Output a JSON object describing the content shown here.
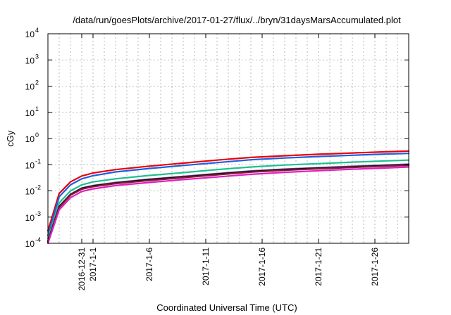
{
  "chart_data": {
    "type": "line",
    "title": "/data/run/goesPlots/archive/2017-01-27/flux/../bryn/31daysMarsAccumulated.plot",
    "xlabel": "Coordinated Universal Time (UTC)",
    "ylabel": "cGy",
    "yscale": "log",
    "ylim": [
      0.0001,
      10000
    ],
    "xlim": [
      "2016-12-28",
      "2017-01-29"
    ],
    "grid": true,
    "legend": "none",
    "x_ticks": [
      "2016-12-31",
      "2017-1-1",
      "2017-1-6",
      "2017-1-11",
      "2017-1-16",
      "2017-1-21",
      "2017-1-26"
    ],
    "y_ticks": [
      {
        "base": "10",
        "exp": "-4",
        "value": 0.0001
      },
      {
        "base": "10",
        "exp": "-3",
        "value": 0.001
      },
      {
        "base": "10",
        "exp": "-2",
        "value": 0.01
      },
      {
        "base": "10",
        "exp": "-1",
        "value": 0.1
      },
      {
        "base": "10",
        "exp": "0",
        "value": 1
      },
      {
        "base": "10",
        "exp": "1",
        "value": 10
      },
      {
        "base": "10",
        "exp": "2",
        "value": 100
      },
      {
        "base": "10",
        "exp": "3",
        "value": 1000
      },
      {
        "base": "10",
        "exp": "4",
        "value": 10000
      }
    ],
    "x": [
      "2016-12-28",
      "2016-12-29",
      "2016-12-30",
      "2016-12-31",
      "2017-01-01",
      "2017-01-03",
      "2017-01-06",
      "2017-01-09",
      "2017-01-12",
      "2017-01-15",
      "2017-01-18",
      "2017-01-21",
      "2017-01-24",
      "2017-01-27",
      "2017-01-29"
    ],
    "series": [
      {
        "color": "#e8000b",
        "values": [
          0.0003,
          0.008,
          0.022,
          0.037,
          0.048,
          0.065,
          0.088,
          0.115,
          0.15,
          0.19,
          0.22,
          0.25,
          0.28,
          0.31,
          0.33
        ]
      },
      {
        "color": "#1f5fe0",
        "values": [
          0.0002,
          0.006,
          0.017,
          0.029,
          0.038,
          0.053,
          0.072,
          0.094,
          0.12,
          0.155,
          0.18,
          0.205,
          0.23,
          0.255,
          0.27
        ]
      },
      {
        "color": "#1fbf8f",
        "values": [
          0.00015,
          0.0035,
          0.01,
          0.017,
          0.022,
          0.029,
          0.039,
          0.05,
          0.065,
          0.082,
          0.097,
          0.11,
          0.125,
          0.14,
          0.15
        ]
      },
      {
        "color": "#7a4fb0",
        "values": [
          0.00012,
          0.0026,
          0.0075,
          0.013,
          0.016,
          0.021,
          0.028,
          0.036,
          0.046,
          0.058,
          0.068,
          0.077,
          0.087,
          0.097,
          0.105
        ]
      },
      {
        "color": "#111111",
        "values": [
          0.00012,
          0.0025,
          0.0072,
          0.0125,
          0.0155,
          0.02,
          0.027,
          0.034,
          0.044,
          0.055,
          0.065,
          0.074,
          0.083,
          0.093,
          0.1
        ]
      },
      {
        "color": "#8b1a3a",
        "values": [
          0.00011,
          0.0023,
          0.0068,
          0.0117,
          0.0145,
          0.019,
          0.025,
          0.032,
          0.041,
          0.052,
          0.061,
          0.07,
          0.079,
          0.088,
          0.095
        ]
      },
      {
        "color": "#e020c0",
        "values": [
          0.0001,
          0.0019,
          0.0055,
          0.0095,
          0.012,
          0.016,
          0.021,
          0.027,
          0.034,
          0.043,
          0.051,
          0.059,
          0.067,
          0.075,
          0.082
        ]
      }
    ]
  }
}
